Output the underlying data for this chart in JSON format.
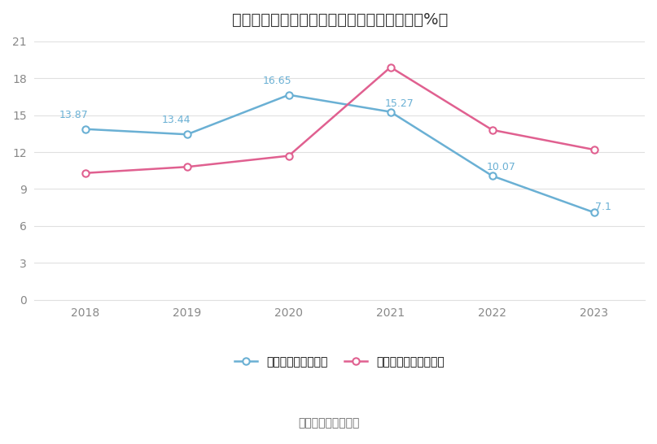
{
  "title": "柳工前五大客户、前五大供应商集中度情况（%）",
  "years": [
    2018,
    2019,
    2020,
    2021,
    2022,
    2023
  ],
  "customers": [
    13.87,
    13.44,
    16.65,
    15.27,
    10.07,
    7.1
  ],
  "suppliers": [
    10.3,
    10.8,
    11.7,
    18.9,
    13.8,
    12.2
  ],
  "customer_color": "#6ab0d4",
  "supplier_color": "#e06090",
  "ylim": [
    0,
    21
  ],
  "yticks": [
    0,
    3,
    6,
    9,
    12,
    15,
    18,
    21
  ],
  "legend_customer": "前五大客户合计占比",
  "legend_supplier": "前五大供应商合计占比",
  "source_text": "数据来源：恒生聚源",
  "bg_color": "#ffffff",
  "grid_color": "#e0e0e0",
  "title_fontsize": 14,
  "label_fontsize": 9,
  "tick_fontsize": 10,
  "legend_fontsize": 10,
  "source_fontsize": 10
}
